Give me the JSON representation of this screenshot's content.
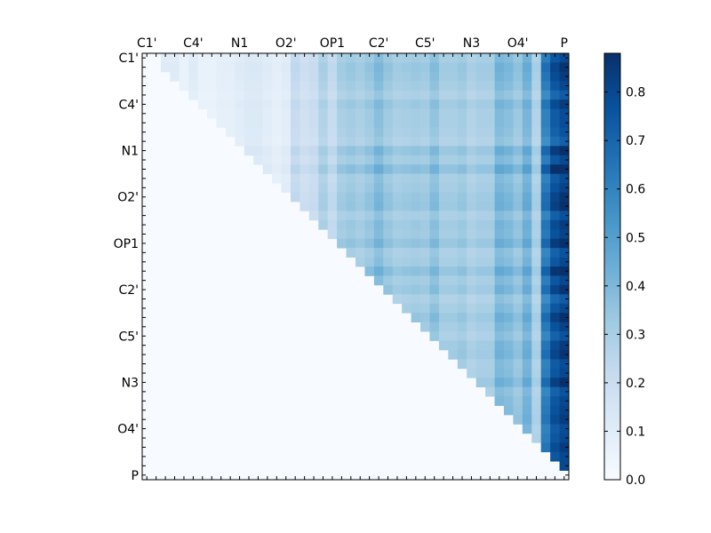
{
  "chart_data": [
    {
      "type": "heatmap",
      "title": "",
      "xlabel": "",
      "ylabel": "",
      "x_labels": [
        "C1'",
        "C4'",
        "N1",
        "O2'",
        "OP1",
        "C2'",
        "C5'",
        "N3",
        "O4'",
        "P"
      ],
      "y_labels": [
        "C1'",
        "C4'",
        "N1",
        "O2'",
        "OP1",
        "C2'",
        "C5'",
        "N3",
        "O4'",
        "P"
      ],
      "x_axis_position": "top",
      "grid": false,
      "n_cells": 46,
      "colormap": "Blues",
      "color_range": [
        0.0,
        0.88
      ],
      "colorbar": {
        "placement": "right",
        "ticks": [
          0.0,
          0.1,
          0.2,
          0.3,
          0.4,
          0.5,
          0.6,
          0.7,
          0.8
        ],
        "tick_labels": [
          "0.0",
          "0.1",
          "0.2",
          "0.3",
          "0.4",
          "0.5",
          "0.6",
          "0.7",
          "0.8"
        ]
      },
      "structure": "upper-triangular matrix; lower triangle and diagonal near 0.0; values increase toward the last column P (up to about 0.88)",
      "column_profile": [
        0.0,
        0.0,
        0.1,
        0.1,
        0.06,
        0.1,
        0.06,
        0.06,
        0.08,
        0.08,
        0.1,
        0.12,
        0.12,
        0.1,
        0.08,
        0.1,
        0.22,
        0.18,
        0.2,
        0.28,
        0.22,
        0.3,
        0.32,
        0.3,
        0.33,
        0.38,
        0.33,
        0.3,
        0.31,
        0.32,
        0.31,
        0.36,
        0.3,
        0.3,
        0.32,
        0.28,
        0.3,
        0.3,
        0.4,
        0.38,
        0.34,
        0.42,
        0.28,
        0.62,
        0.75,
        0.8
      ],
      "row_profile": [
        1.0,
        1.08,
        1.05,
        1.0,
        0.92,
        1.05,
        0.98,
        0.98,
        0.95,
        0.9,
        1.12,
        1.0,
        1.18,
        0.98,
        1.02,
        1.08,
        1.1,
        0.96,
        1.05,
        1.02,
        1.12,
        0.95,
        1.0,
        1.15,
        1.0,
        1.08,
        0.92,
        1.0,
        1.1,
        1.02,
        0.95,
        1.05,
        1.08,
        0.98,
        1.0,
        1.1,
        0.95,
        1.0,
        1.02,
        1.05,
        0.98,
        1.0,
        1.05,
        1.0,
        1.0,
        1.0
      ]
    }
  ]
}
